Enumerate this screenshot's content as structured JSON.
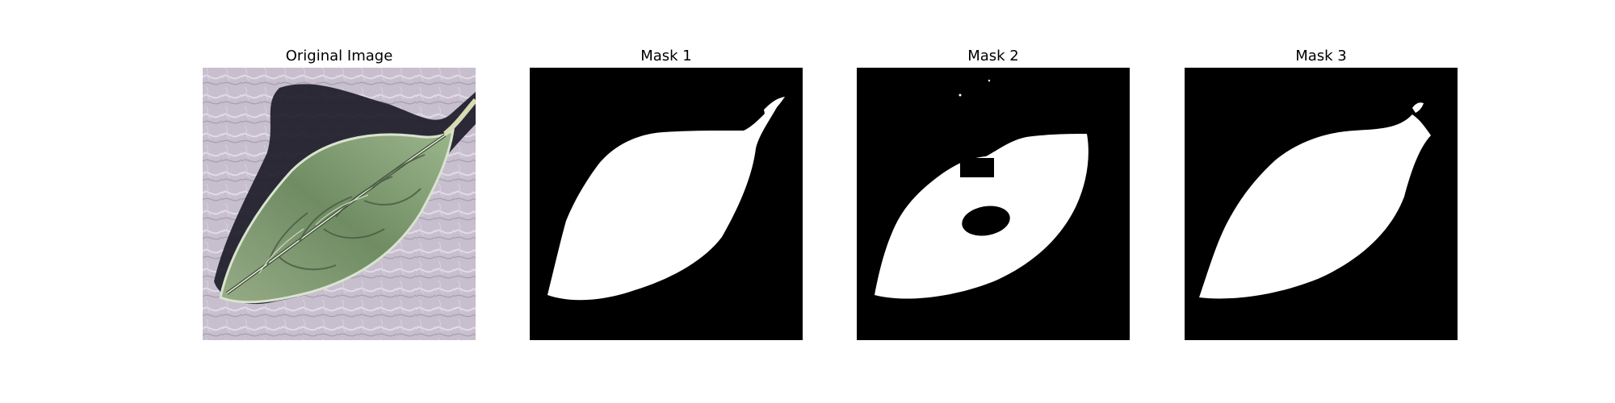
{
  "figure": {
    "panels": [
      {
        "title": "Original Image"
      },
      {
        "title": "Mask 1"
      },
      {
        "title": "Mask 2"
      },
      {
        "title": "Mask 3"
      }
    ]
  },
  "colors": {
    "background": "#ffffff",
    "mask_background": "#000000",
    "mask_foreground": "#ffffff",
    "leaf_green": "#7f9a72",
    "surface_lilac": "#c9c0cf",
    "shadow": "#1c1b27"
  }
}
